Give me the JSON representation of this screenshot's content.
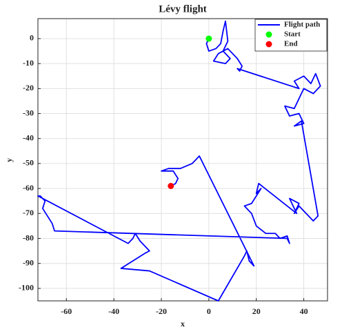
{
  "chart_data": {
    "type": "line",
    "title": "Lévy flight",
    "x_label": "x",
    "y_label": "y",
    "xlim": [
      -72,
      50
    ],
    "ylim": [
      -105,
      8
    ],
    "xticks": [
      -60,
      -40,
      -20,
      0,
      20,
      40
    ],
    "yticks": [
      0,
      -10,
      -20,
      -30,
      -40,
      -50,
      -60,
      -70,
      -80,
      -90,
      -100
    ],
    "grid": true,
    "legend": "upper right",
    "series": [
      {
        "name": "Flight path",
        "color": "#0000ff",
        "kind": "line",
        "x": [
          0,
          -1,
          0,
          3,
          5,
          6,
          7,
          8,
          6,
          9,
          7,
          2,
          4,
          8,
          12,
          14,
          13,
          12,
          38,
          36,
          40,
          43,
          45,
          47,
          44,
          40,
          38,
          36,
          32,
          34,
          38,
          40,
          36,
          39,
          46,
          44,
          40,
          38,
          36,
          38,
          34,
          37,
          21,
          20,
          22,
          18,
          15,
          18,
          20,
          24,
          28,
          30,
          33,
          34,
          33,
          -65,
          -66,
          -68,
          -70,
          -69,
          -71,
          -72,
          -34,
          -32,
          -31,
          -29,
          -25,
          -27,
          -37,
          -25,
          4,
          15,
          16,
          17,
          19,
          -4,
          -7,
          -12,
          -17,
          -20,
          -15,
          -13,
          -14,
          -16
        ],
        "y": [
          0,
          -2,
          -5,
          -4,
          -2,
          3,
          7,
          -1,
          -5,
          -8,
          -10,
          -9,
          -6,
          -4,
          -8,
          -11,
          -13,
          -12,
          -20,
          -17,
          -15,
          -18,
          -14,
          -19,
          -22,
          -20,
          -24,
          -28,
          -27,
          -31,
          -30,
          -34,
          -35,
          -33,
          -71,
          -73,
          -69,
          -67,
          -70,
          -66,
          -64,
          -70,
          -58,
          -62,
          -60,
          -66,
          -67,
          -70,
          -75,
          -78,
          -78,
          -80,
          -79,
          -82,
          -80,
          -77,
          -74,
          -71,
          -68,
          -65,
          -63,
          -63,
          -82,
          -80,
          -78,
          -81,
          -85,
          -86,
          -92,
          -93,
          -105,
          -87,
          -85,
          -89,
          -91,
          -47,
          -50,
          -52,
          -52,
          -53,
          -53,
          -56,
          -58,
          -59
        ]
      },
      {
        "name": "Start",
        "color": "#00ff00",
        "kind": "marker",
        "x": [
          0
        ],
        "y": [
          0
        ]
      },
      {
        "name": "End",
        "color": "#ff0000",
        "kind": "marker",
        "x": [
          -16
        ],
        "y": [
          -59
        ]
      }
    ]
  }
}
